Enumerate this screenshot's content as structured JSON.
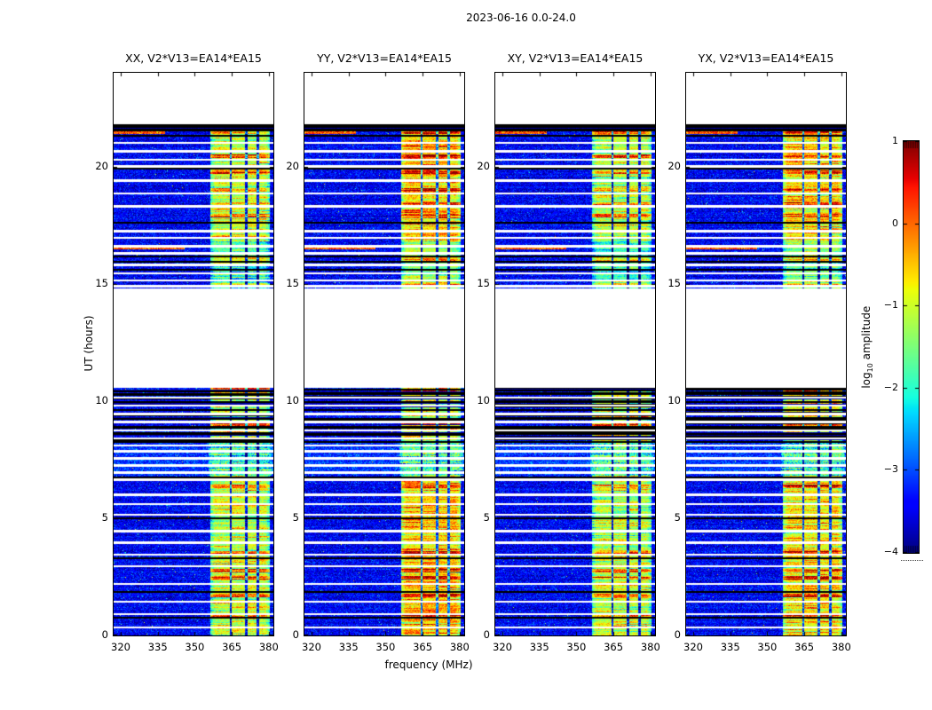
{
  "figure": {
    "title": "2023-06-16 0.0-24.0",
    "xlabel": "frequency (MHz)",
    "ylabel": "UT (hours)",
    "colorbar": {
      "label_pre": "log",
      "label_sub": "10",
      "label_post": " amplitude",
      "ticks": [
        "1",
        "0",
        "−1",
        "−2",
        "−3",
        "−4"
      ]
    }
  },
  "chart_data": {
    "type": "heatmap",
    "title": "2023-06-16 0.0-24.0",
    "xlabel": "frequency (MHz)",
    "ylabel": "UT (hours)",
    "x_range_mhz": [
      317.1,
      381.9
    ],
    "x_ticks": [
      "320",
      "335",
      "350",
      "365",
      "380"
    ],
    "x_tick_values": [
      320,
      335,
      350,
      365,
      380
    ],
    "y_range_hours": [
      0,
      24
    ],
    "y_ticks": [
      "0",
      "5",
      "10",
      "15",
      "20"
    ],
    "y_tick_values": [
      0,
      5,
      10,
      15,
      20
    ],
    "colormap": "jet",
    "value_label": "log10 amplitude",
    "value_range": [
      -4,
      1
    ],
    "colorbar_tick_values": [
      1,
      0,
      -1,
      -2,
      -3,
      -4
    ],
    "panels": [
      {
        "id": "xx",
        "title": "XX, V2*V13=EA14*EA15",
        "stripe_level": -1.05,
        "seed": 101
      },
      {
        "id": "yy",
        "title": "YY, V2*V13=EA14*EA15",
        "stripe_level": -0.5,
        "seed": 202
      },
      {
        "id": "xy",
        "title": "XY, V2*V13=EA14*EA15",
        "stripe_level": -1.15,
        "seed": 303
      },
      {
        "id": "yx",
        "title": "YX, V2*V13=EA14*EA15",
        "stripe_level": -0.7,
        "seed": 404
      }
    ],
    "features": {
      "background_level_log10": -3.45,
      "observed_intervals_hours": [
        [
          0,
          10.55
        ],
        [
          14.8,
          21.52
        ]
      ],
      "no_data_white_intervals_hours": [
        [
          10.55,
          14.8
        ],
        [
          21.8,
          24.0
        ]
      ],
      "flagged_black_band_hours": [
        21.52,
        21.8
      ],
      "navy_row_in_black_band_hours": [
        21.6,
        21.66
      ],
      "rfi_band_mhz": [
        356.5,
        380.3
      ],
      "rfi_channel_gaps_mhz": [
        364.6,
        370.9,
        375.7
      ],
      "cyan_speckle_interval_hours": [
        6.8,
        8.25
      ],
      "dense_flagged_interval_hours": [
        8.25,
        10.55
      ],
      "dim_stripe_interval_hours": [
        14.8,
        16.8
      ],
      "white_missing_rows_hours": [
        0.35,
        0.9,
        1.45,
        2.2,
        2.95,
        3.45,
        3.95,
        4.45,
        5.15,
        5.6,
        6.0,
        6.65,
        6.95,
        7.25,
        7.55,
        7.85,
        8.1,
        8.4,
        8.75,
        9.1,
        9.45,
        9.8,
        10.15,
        14.9,
        15.15,
        15.45,
        15.8,
        16.3,
        16.6,
        16.95,
        17.25,
        18.3,
        18.85,
        19.4,
        20.0,
        20.3,
        20.65,
        21.0
      ],
      "black_flagged_rows_hours": [
        0.75,
        1.85,
        3.3,
        5.0,
        6.75,
        8.25,
        8.6,
        8.85,
        8.9,
        9.25,
        9.6,
        9.95,
        10.3,
        15.6,
        15.95,
        16.15,
        17.6,
        19.9,
        21.3
      ],
      "hot_rows_hours": [
        0.8,
        1.7,
        2.45,
        2.75,
        3.5,
        6.35,
        9.0,
        10.5,
        14.95,
        16.05,
        17.9,
        18.4,
        19.0,
        19.75,
        20.45,
        21.45
      ],
      "left_edge_streak_rows": [
        {
          "hour": 21.45,
          "mhz": [
            317.1,
            338
          ]
        },
        {
          "hour": 16.5,
          "mhz": [
            317.1,
            346
          ]
        }
      ]
    }
  }
}
